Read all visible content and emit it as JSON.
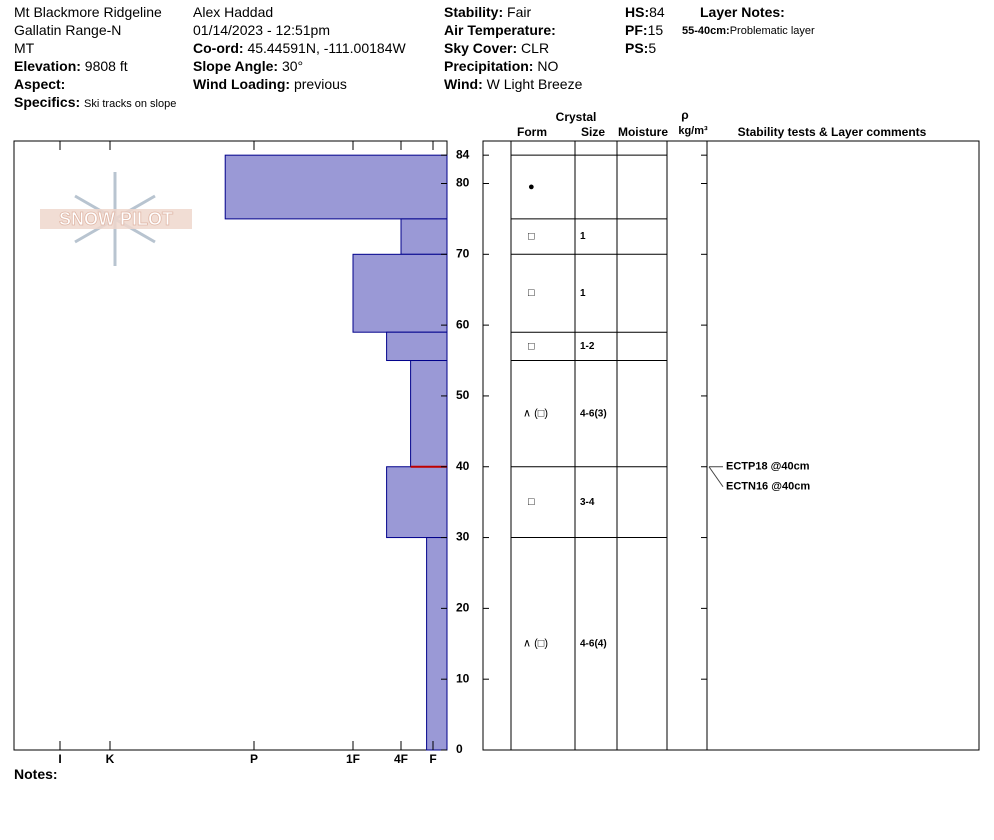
{
  "header": {
    "site": "Mt Blackmore Ridgeline",
    "range": "Gallatin Range-N",
    "state": "MT",
    "elevation": {
      "label": "Elevation:",
      "value": "9808 ft"
    },
    "aspect": {
      "label": "Aspect:"
    },
    "specifics": {
      "label": "Specifics:",
      "value": "Ski tracks on slope"
    },
    "observer": "Alex Haddad",
    "datetime": "01/14/2023 - 12:51pm",
    "coord": {
      "label": "Co-ord:",
      "value": "45.44591N, -111.00184W"
    },
    "slope": {
      "label": "Slope Angle:",
      "value": "30°"
    },
    "wind_loading": {
      "label": "Wind Loading:",
      "value": "previous"
    },
    "stability": {
      "label": "Stability:",
      "value": "Fair"
    },
    "air_temp": {
      "label": "Air Temperature:"
    },
    "sky": {
      "label": "Sky Cover:",
      "value": "CLR"
    },
    "precip": {
      "label": "Precipitation:",
      "value": "NO"
    },
    "wind": {
      "label": "Wind:",
      "value": "W Light Breeze"
    },
    "hs": {
      "label": "HS:",
      "value": "84"
    },
    "pf": {
      "label": "PF:",
      "value": "15"
    },
    "ps": {
      "label": "PS:",
      "value": "5"
    },
    "layer_notes": {
      "label": "Layer Notes:",
      "depth": "55-40cm:",
      "text": "Problematic layer"
    },
    "notes": "Notes:",
    "logo": "SNOW PILOT"
  },
  "chart_data": {
    "type": "snow-profile",
    "ylim": [
      0,
      86
    ],
    "yticks": [
      0,
      10,
      20,
      30,
      40,
      50,
      60,
      70,
      80,
      84
    ],
    "xlim": [
      0,
      7
    ],
    "xticks": [
      {
        "value": 6,
        "label": "I"
      },
      {
        "value": 5,
        "label": "K"
      },
      {
        "value": 4,
        "label": "P"
      },
      {
        "value": 3,
        "label": "1F"
      },
      {
        "value": 2,
        "label": "4F"
      },
      {
        "value": 1,
        "label": "F"
      }
    ],
    "color": "#9a99d6",
    "columns": {
      "crystal": "Crystal",
      "form": "Form",
      "size": "Size",
      "moisture": "Moisture",
      "rho": "ρ",
      "density_unit": "kg/m³",
      "comments": "Stability tests & Layer comments"
    },
    "layers": [
      {
        "top": 84,
        "bottom": 75,
        "hardness": 4.2,
        "form": "●"
      },
      {
        "top": 75,
        "bottom": 70,
        "hardness": 2,
        "form": "□",
        "size": "1"
      },
      {
        "top": 70,
        "bottom": 59,
        "hardness": 3,
        "form": "□",
        "size": "1"
      },
      {
        "top": 59,
        "bottom": 55,
        "hardness": 2.3,
        "form": "□",
        "size": "1-2"
      },
      {
        "top": 55,
        "bottom": 40,
        "hardness": 1.7,
        "form": "∧ (□)",
        "size": "4-6(3)"
      },
      {
        "top": 40,
        "bottom": 30,
        "hardness": 2.3,
        "form": "□",
        "size": "3-4"
      },
      {
        "top": 30,
        "bottom": 0,
        "hardness": 1.2,
        "form": "∧ (□)",
        "size": "4-6(4)"
      }
    ],
    "tests": [
      {
        "depth": 40,
        "text": "ECTP18 @40cm"
      },
      {
        "depth": 40,
        "text": "ECTN16 @40cm"
      }
    ]
  }
}
